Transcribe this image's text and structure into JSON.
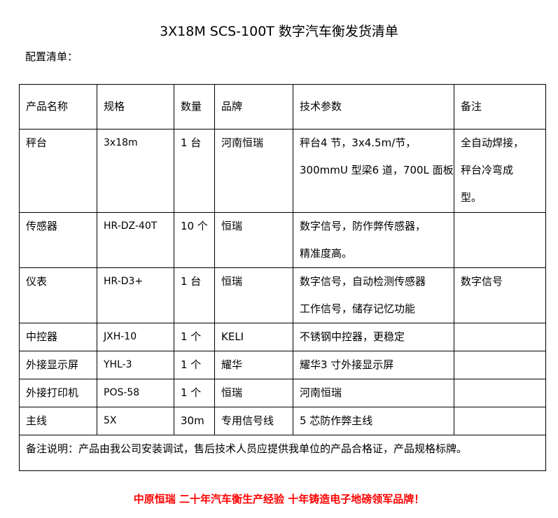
{
  "title": "3X18M SCS-100T 数字汽车衡发货清单",
  "subtitle": "配置清单：",
  "headers": [
    "产品名称",
    "规格",
    "数量",
    "品牌",
    "技术参数",
    "备注"
  ],
  "rows": [
    {
      "name": "秤台",
      "spec": "3x18m",
      "qty": "1 台",
      "brand": "河南恒瑞",
      "tech": [
        "秤台4 节，3x4.5m/节，",
        "300mmU 型梁6 道，700L 面板"
      ],
      "remark": [
        "全自动焊接，",
        "秤台冷弯成",
        "型。"
      ]
    },
    {
      "name": "传感器",
      "spec": "HR-DZ-40T",
      "qty": "10 个",
      "brand": "恒瑞",
      "tech": [
        "数字信号，防作弊传感器，",
        "精准度高。"
      ],
      "remark": []
    },
    {
      "name": "仪表",
      "spec": "HR-D3+",
      "qty": "1 台",
      "brand": "恒瑞",
      "tech": [
        "数字信号，自动检测传感器",
        "工作信号，储存记忆功能"
      ],
      "remark": [
        "数字信号"
      ]
    },
    {
      "name": "中控器",
      "spec": "JXH-10",
      "qty": "1 个",
      "brand": "KELI",
      "tech": [
        "不锈钢中控器，更稳定"
      ],
      "remark": []
    },
    {
      "name": "外接显示屏",
      "spec": "YHL-3",
      "qty": "1 个",
      "brand": "耀华",
      "tech": [
        "耀华3 寸外接显示屏"
      ],
      "remark": []
    },
    {
      "name": "外接打印机",
      "spec": "POS-58",
      "qty": "1 个",
      "brand": "恒瑞",
      "tech": [
        "河南恒瑞"
      ],
      "remark": []
    },
    {
      "name": "主线",
      "spec": "5X",
      "qty": "30m",
      "brand": "专用信号线",
      "tech": [
        "5 芯防作弊主线"
      ],
      "remark": []
    }
  ],
  "note": "备注说明：产品由我公司安装调试，售后技术人员应提供我单位的产品合格证，产品规格标牌。",
  "footer": "中原恒瑞 二十年汽车衡生产经验 十年铸造电子地磅领军品牌！",
  "colors": {
    "footer": "#ff0000"
  }
}
